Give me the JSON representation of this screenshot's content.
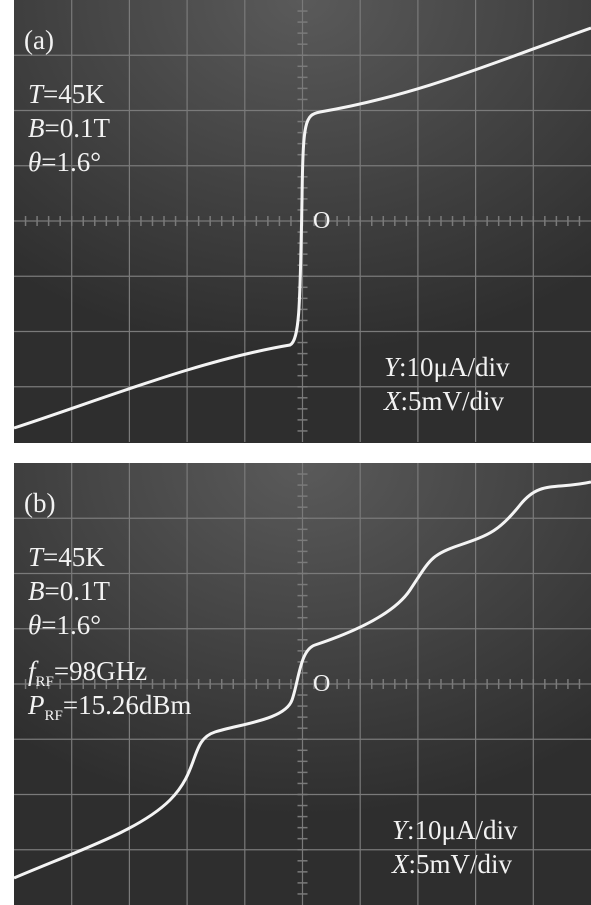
{
  "panels": [
    {
      "label": "(a)",
      "origin": "O",
      "params": [
        {
          "symbol": "T",
          "value": "=45K"
        },
        {
          "symbol": "B",
          "value": "=0.1T"
        },
        {
          "symbol": "θ",
          "value": "=1.6°"
        }
      ],
      "scales": [
        {
          "symbol": "Y",
          "value": ":10μA/div"
        },
        {
          "symbol": "X",
          "value": ":5mV/div"
        }
      ]
    },
    {
      "label": "(b)",
      "origin": "O",
      "params": [
        {
          "symbol": "T",
          "value": "=45K"
        },
        {
          "symbol": "B",
          "value": "=0.1T"
        },
        {
          "symbol": "θ",
          "value": "=1.6°"
        },
        {
          "symbol": "f",
          "subscript": "RF",
          "value": "=98GHz"
        },
        {
          "symbol": "P",
          "subscript": "RF",
          "value": "=15.26dBm"
        }
      ],
      "scales": [
        {
          "symbol": "Y",
          "value": ":10μA/div"
        },
        {
          "symbol": "X",
          "value": ":5mV/div"
        }
      ]
    }
  ]
}
